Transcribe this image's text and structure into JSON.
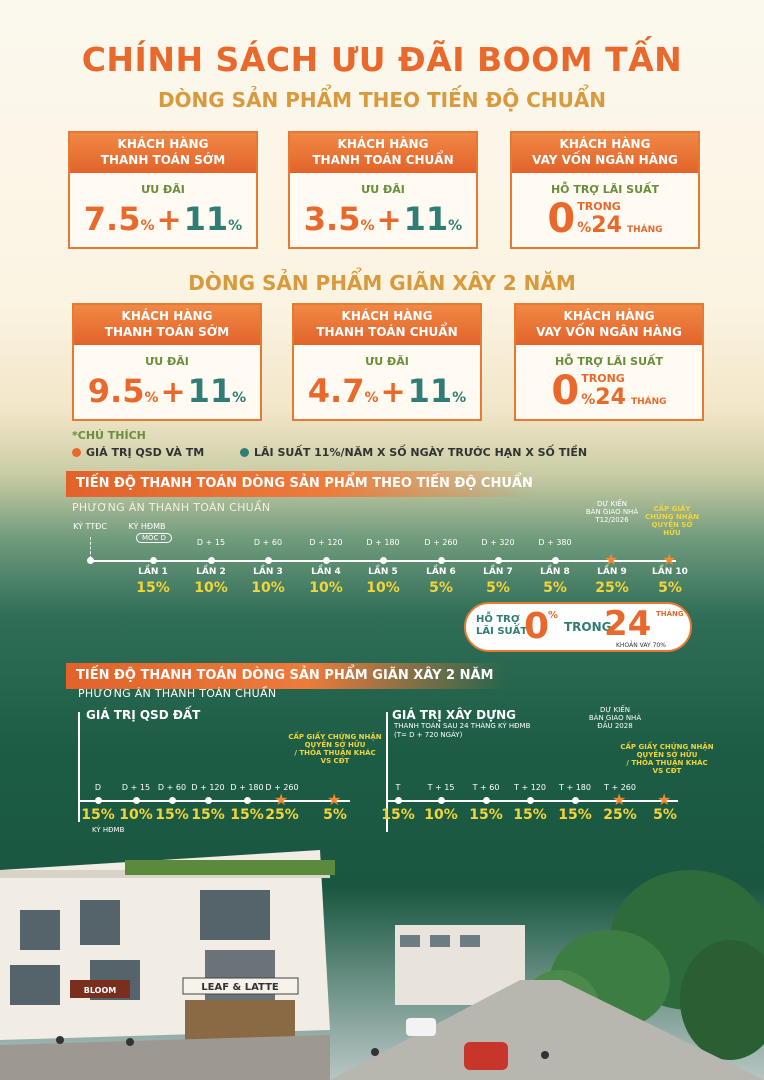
{
  "header": {
    "title": "CHÍNH SÁCH ƯU ĐÃI BOOM TẤN",
    "subtitle_1": "DÒNG SẢN PHẨM THEO TIẾN ĐỘ CHUẨN",
    "subtitle_2": "DÒNG SẢN PHẨM GIÃN XÂY 2 NĂM"
  },
  "cards_1": [
    {
      "head_1": "KHÁCH HÀNG",
      "head_2": "THANH TOÁN SỚM",
      "sub": "ƯU ĐÃI",
      "v1": "7.5",
      "v2": "11",
      "pct": "%",
      "plus": "+"
    },
    {
      "head_1": "KHÁCH HÀNG",
      "head_2": "THANH TOÁN CHUẨN",
      "sub": "ƯU ĐÃI",
      "v1": "3.5",
      "v2": "11",
      "pct": "%",
      "plus": "+"
    },
    {
      "head_1": "KHÁCH HÀNG",
      "head_2": "VAY VỐN NGÂN HÀNG",
      "sub": "HỖ TRỢ LÃI SUẤT",
      "zero": "0",
      "pct": "%",
      "trong": "TRONG",
      "months": "24",
      "thang": "THÁNG"
    }
  ],
  "cards_2": [
    {
      "head_1": "KHÁCH HÀNG",
      "head_2": "THANH TOÁN SỚM",
      "sub": "ƯU ĐÃI",
      "v1": "9.5",
      "v2": "11",
      "pct": "%",
      "plus": "+"
    },
    {
      "head_1": "KHÁCH HÀNG",
      "head_2": "THANH TOÁN CHUẨN",
      "sub": "ƯU ĐÃI",
      "v1": "4.7",
      "v2": "11",
      "pct": "%",
      "plus": "+"
    },
    {
      "head_1": "KHÁCH HÀNG",
      "head_2": "VAY VỐN NGÂN HÀNG",
      "sub": "HỖ TRỢ LÃI SUẤT",
      "zero": "0",
      "pct": "%",
      "trong": "TRONG",
      "months": "24",
      "thang": "THÁNG"
    }
  ],
  "notes": {
    "heading": "*CHÚ THÍCH",
    "orange": "GIÁ TRỊ QSD VÀ TM",
    "teal": "LÃI SUẤT 11%/NĂM X SỐ NGÀY TRƯỚC HẠN X SỐ TIỀN",
    "orange_color": "#e8692b",
    "teal_color": "#2f7d74"
  },
  "schedule_1": {
    "bar": "TIẾN ĐỘ THANH TOÁN DÒNG SẢN PHẨM THEO TIẾN ĐỘ CHUẨN",
    "plan": "PHƯƠNG ÁN THANH TOÁN CHUẨN",
    "ky_ttdc": "KÝ TTĐC",
    "ky_hdmb": "KÝ HĐMB",
    "moc_d": "MỐC D",
    "du_kien": "DỰ KIẾN",
    "ban_giao": "BÀN GIAO NHÀ",
    "ban_giao_date": "T12/2026",
    "cap_giay_1": "CẤP GIẤY",
    "cap_giay_2": "CHỨNG NHẬN",
    "cap_giay_3": "QUYỀN SỞ HỮU",
    "steps": [
      {
        "top": "",
        "lan": "LẦN 1",
        "pct": "15%"
      },
      {
        "top": "D + 15",
        "lan": "LẦN 2",
        "pct": "10%"
      },
      {
        "top": "D + 60",
        "lan": "LẦN 3",
        "pct": "10%"
      },
      {
        "top": "D + 120",
        "lan": "LẦN 4",
        "pct": "10%"
      },
      {
        "top": "D + 180",
        "lan": "LẦN 5",
        "pct": "10%"
      },
      {
        "top": "D + 260",
        "lan": "LẦN 6",
        "pct": "5%"
      },
      {
        "top": "D + 320",
        "lan": "LẦN 7",
        "pct": "5%"
      },
      {
        "top": "D + 380",
        "lan": "LẦN 8",
        "pct": "5%"
      },
      {
        "top": "",
        "lan": "LẦN 9",
        "pct": "25%"
      },
      {
        "top": "",
        "lan": "LẦN 10",
        "pct": "5%"
      }
    ],
    "support": {
      "label_1": "HỖ TRỢ",
      "label_2": "LÃI SUẤT",
      "zero": "0",
      "pct": "%",
      "trong": "TRONG",
      "months": "24",
      "thang": "THÁNG",
      "loan_note": "KHOẢN VAY 70%"
    }
  },
  "schedule_2": {
    "bar": "TIẾN ĐỘ THANH TOÁN DÒNG SẢN PHẨM GIÃN XÂY 2 NĂM",
    "plan": "PHƯƠNG ÁN THANH TOÁN CHUẨN",
    "left_head": "GIÁ TRỊ QSD ĐẤT",
    "right_head": "GIÁ TRỊ XÂY DỰNG",
    "right_sub_1": "THANH TOÁN SAU 24 THÁNG KÝ HĐMB",
    "right_sub_2": "(T= D + 720 NGÀY)",
    "ky_hdmb": "KÝ HĐMB",
    "cert_1": "CẤP GIẤY CHỨNG NHẬN",
    "cert_2": "QUYỀN SỞ HỮU",
    "cert_3": "/ THỎA THUẬN KHÁC",
    "cert_4": "VS CĐT",
    "du_kien": "DỰ KIẾN",
    "ban_giao": "BÀN GIAO NHÀ",
    "ban_giao_date": "ĐẦU 2028",
    "left_steps": [
      {
        "top": "D",
        "pct": "15%"
      },
      {
        "top": "D + 15",
        "pct": "10%"
      },
      {
        "top": "D + 60",
        "pct": "15%"
      },
      {
        "top": "D + 120",
        "pct": "15%"
      },
      {
        "top": "D + 180",
        "pct": "15%"
      },
      {
        "top": "D + 260",
        "pct": "25%"
      },
      {
        "top": "",
        "pct": "5%"
      }
    ],
    "right_steps": [
      {
        "top": "T",
        "pct": "15%"
      },
      {
        "top": "T + 15",
        "pct": "10%"
      },
      {
        "top": "T + 60",
        "pct": "15%"
      },
      {
        "top": "T + 120",
        "pct": "15%"
      },
      {
        "top": "T + 180",
        "pct": "15%"
      },
      {
        "top": "T + 260",
        "pct": "25%"
      },
      {
        "top": "",
        "pct": "5%"
      }
    ]
  },
  "scene": {
    "sign_1": "LEAF & LATTE",
    "sign_2": "BLOOM"
  }
}
